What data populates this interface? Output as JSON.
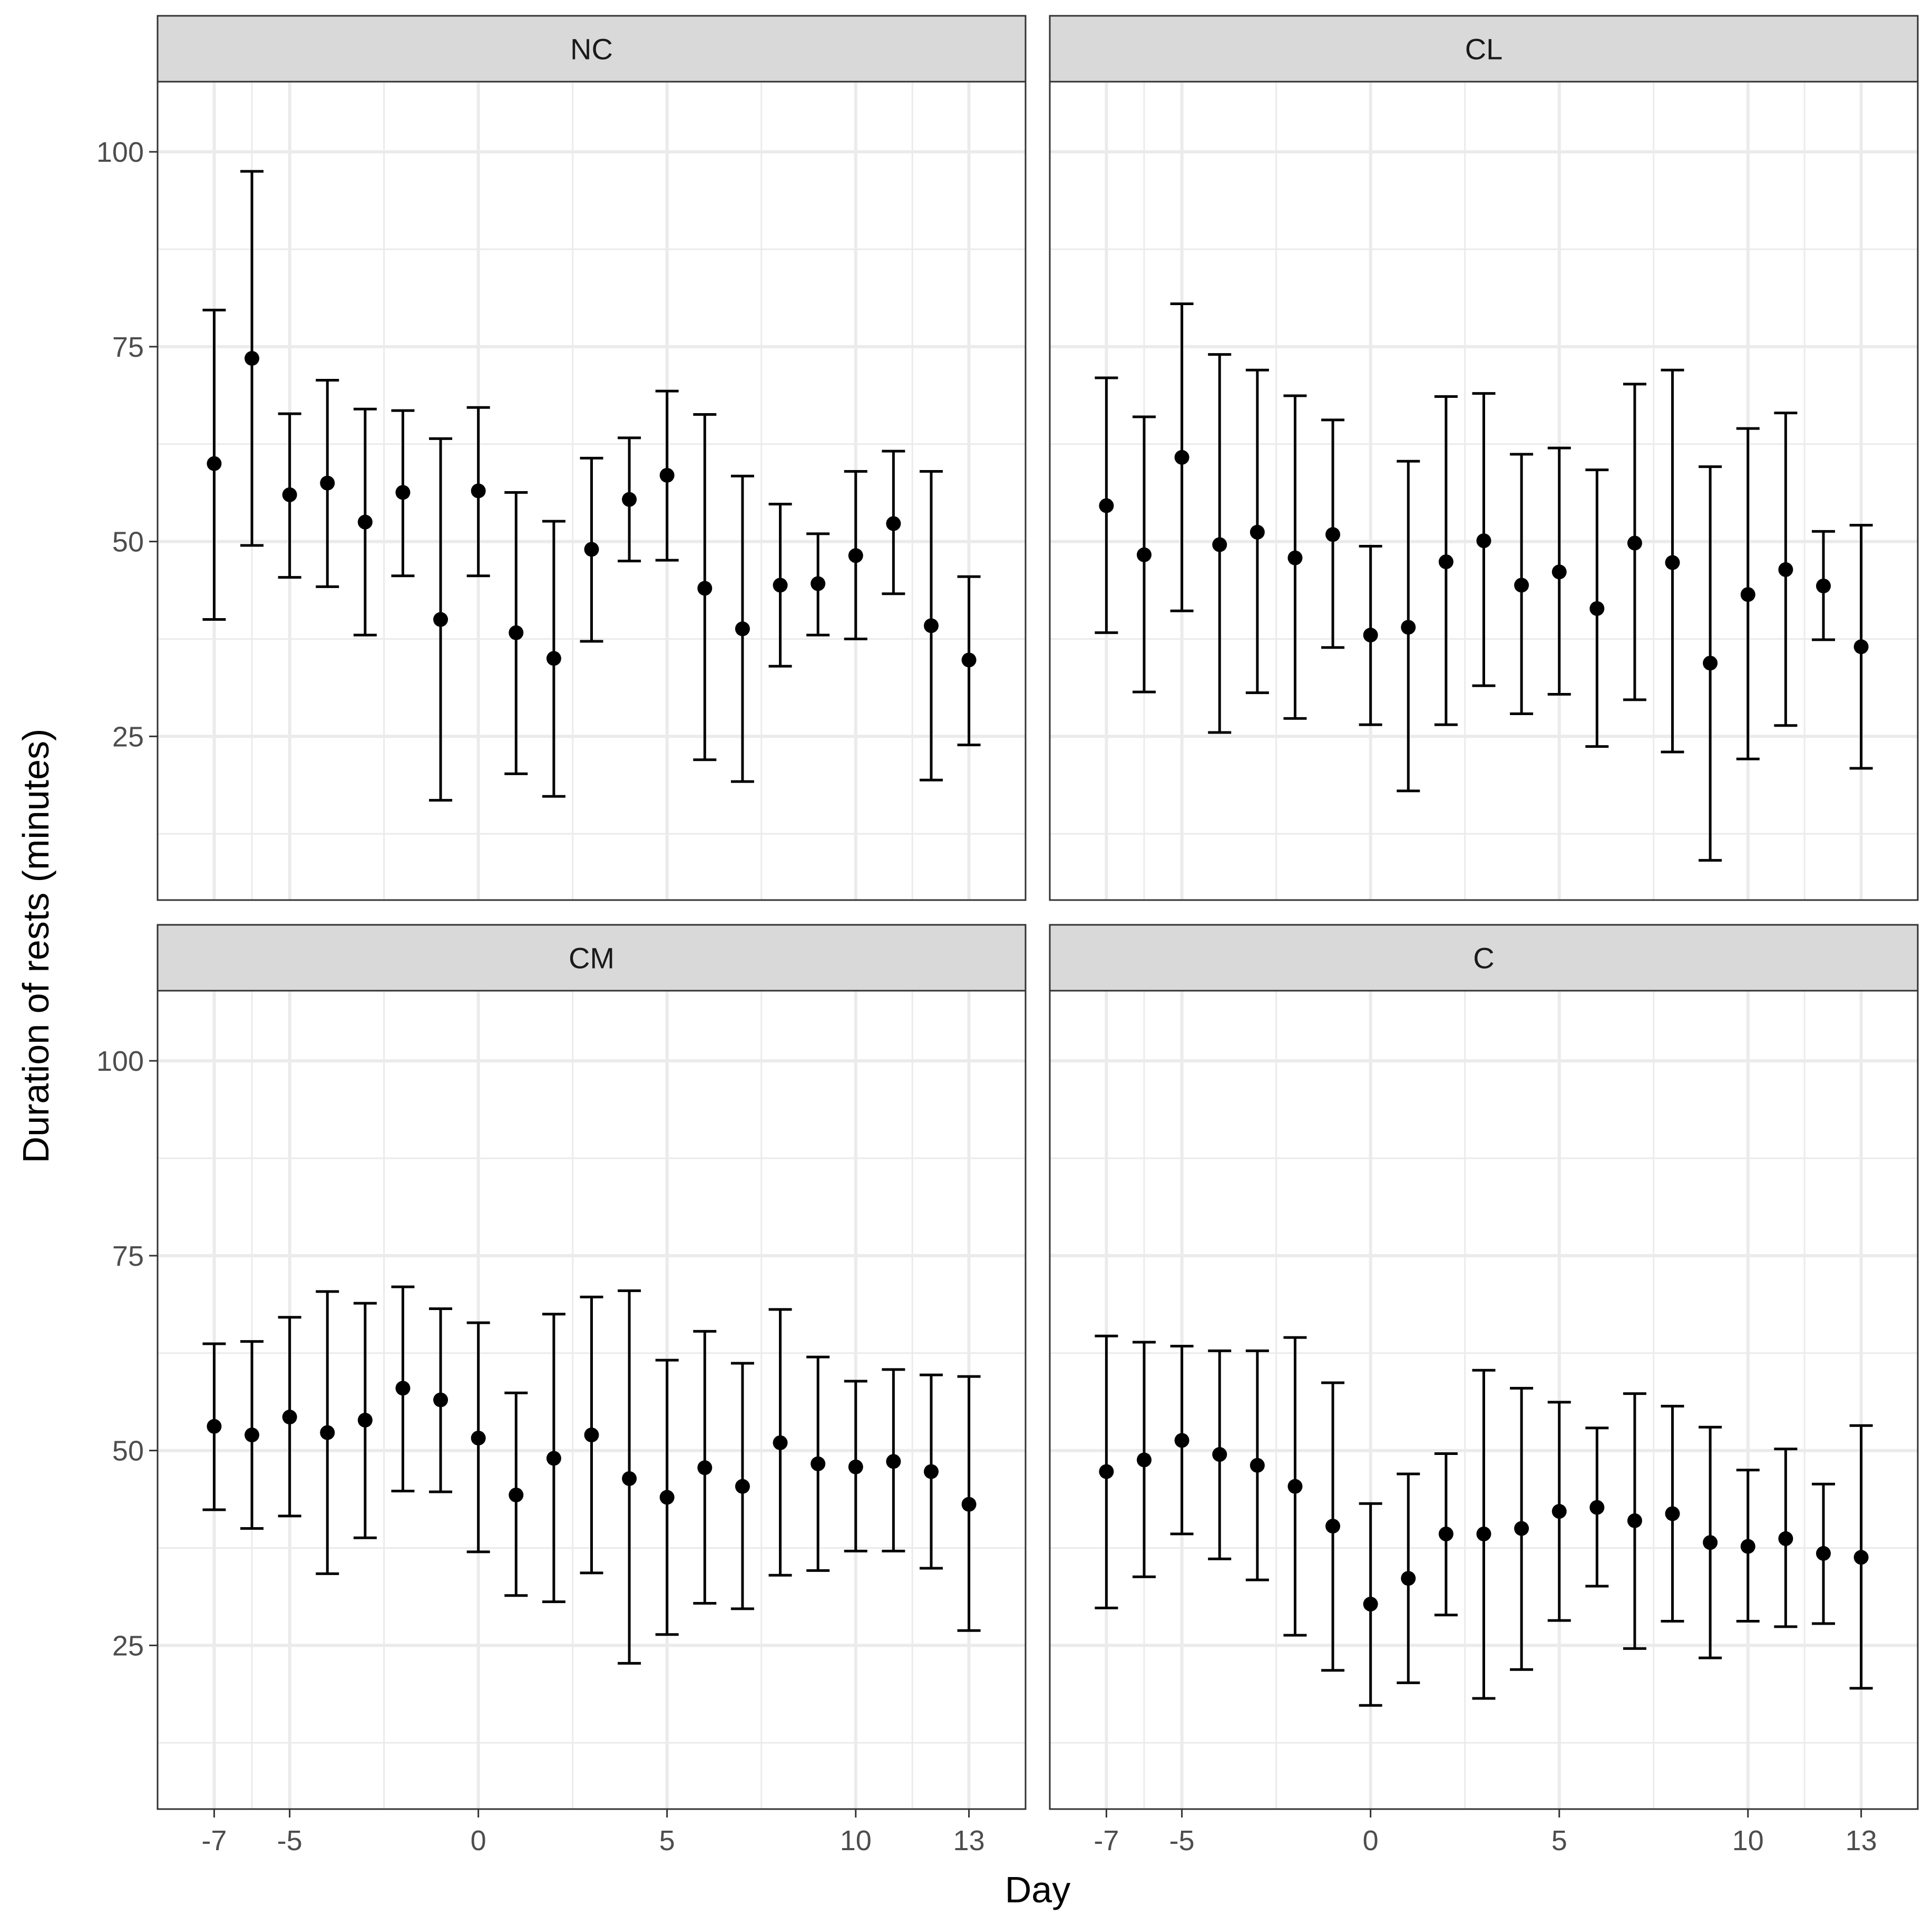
{
  "chart_data": {
    "type": "scatter",
    "subtype": "point-with-errorbars, faceted 2x2",
    "xlabel": "Day",
    "ylabel": "Duration of rests (minutes)",
    "x_ticks": [
      -7,
      -5,
      0,
      5,
      10,
      13
    ],
    "y_ticks": [
      25,
      50,
      75,
      100
    ],
    "xlim": [
      -8.5,
      14.5
    ],
    "ylim": [
      4,
      109
    ],
    "grid": true,
    "x": [
      -7,
      -6,
      -5,
      -4,
      -3,
      -2,
      -1,
      0,
      1,
      2,
      3,
      4,
      5,
      6,
      7,
      8,
      9,
      10,
      11,
      12,
      13
    ],
    "facets": [
      {
        "name": "NC",
        "mean": [
          60,
          73.5,
          56,
          57.5,
          52.5,
          56.3,
          40,
          56.5,
          38.3,
          35,
          49,
          55.4,
          58.5,
          44,
          38.8,
          44.4,
          44.6,
          48.2,
          52.3,
          39.2,
          34.8
        ],
        "lower": [
          40,
          49.5,
          45.4,
          44.2,
          38,
          45.6,
          16.8,
          45.6,
          20.2,
          17.3,
          37.2,
          47.5,
          47.6,
          22,
          19.2,
          34,
          38,
          37.5,
          43.3,
          19.4,
          23.9
        ],
        "upper": [
          79.7,
          97.5,
          66.4,
          70.7,
          67,
          66.8,
          63.2,
          67.2,
          56.3,
          52.6,
          60.7,
          63.3,
          69.3,
          66.3,
          58.4,
          54.8,
          51,
          59,
          61.6,
          59,
          45.5
        ]
      },
      {
        "name": "CL",
        "mean": [
          54.6,
          48.3,
          60.8,
          49.6,
          51.2,
          47.9,
          50.9,
          38,
          39,
          47.4,
          50.1,
          44.4,
          46.1,
          41.4,
          49.8,
          47.3,
          34.4,
          43.2,
          46.4,
          44.3,
          36.5
        ],
        "lower": [
          38.3,
          30.7,
          41.1,
          25.5,
          30.6,
          27.3,
          36.4,
          26.5,
          18,
          26.5,
          31.5,
          27.9,
          30.4,
          23.7,
          29.7,
          23,
          9.1,
          22.1,
          26.4,
          37.4,
          20.9
        ],
        "upper": [
          71,
          66,
          80.5,
          74,
          72,
          68.7,
          65.6,
          49.4,
          60.3,
          68.6,
          69,
          61.2,
          62,
          59.2,
          70.2,
          72,
          59.6,
          64.5,
          66.5,
          51.3,
          52.1
        ]
      },
      {
        "name": "CM",
        "mean": [
          53.1,
          52,
          54.3,
          52.3,
          53.9,
          58,
          56.5,
          51.6,
          44.3,
          49,
          52,
          46.4,
          44,
          47.8,
          45.4,
          51,
          48.3,
          47.9,
          48.6,
          47.3,
          43.1
        ],
        "lower": [
          42.4,
          40,
          41.6,
          34.2,
          38.8,
          44.8,
          44.7,
          37,
          31.4,
          30.6,
          34.3,
          22.7,
          26.4,
          30.4,
          29.7,
          34,
          34.6,
          37.1,
          37.1,
          34.9,
          26.9
        ],
        "upper": [
          63.7,
          64,
          67.1,
          70.4,
          68.9,
          71,
          68.2,
          66.4,
          57.4,
          67.5,
          69.7,
          70.5,
          61.6,
          65.3,
          61.2,
          68.1,
          62,
          58.9,
          60.4,
          59.7,
          59.5
        ]
      },
      {
        "name": "C",
        "mean": [
          47.3,
          48.8,
          51.3,
          49.5,
          48.1,
          45.4,
          40.3,
          30.3,
          33.6,
          39.3,
          39.3,
          40,
          42.2,
          42.7,
          41,
          41.9,
          38.2,
          37.7,
          38.7,
          36.8,
          36.3
        ],
        "lower": [
          29.8,
          33.8,
          39.3,
          36.1,
          33.4,
          26.3,
          21.8,
          17.3,
          20.2,
          28.9,
          18.2,
          21.9,
          28.2,
          32.6,
          24.6,
          28.1,
          23.4,
          28.1,
          27.4,
          27.8,
          19.5
        ],
        "upper": [
          64.7,
          63.9,
          63.4,
          62.8,
          62.8,
          64.5,
          58.7,
          43.2,
          47,
          49.6,
          60.3,
          58,
          56.2,
          52.9,
          57.3,
          55.7,
          53,
          47.5,
          50.2,
          45.7,
          53.2
        ]
      }
    ]
  }
}
